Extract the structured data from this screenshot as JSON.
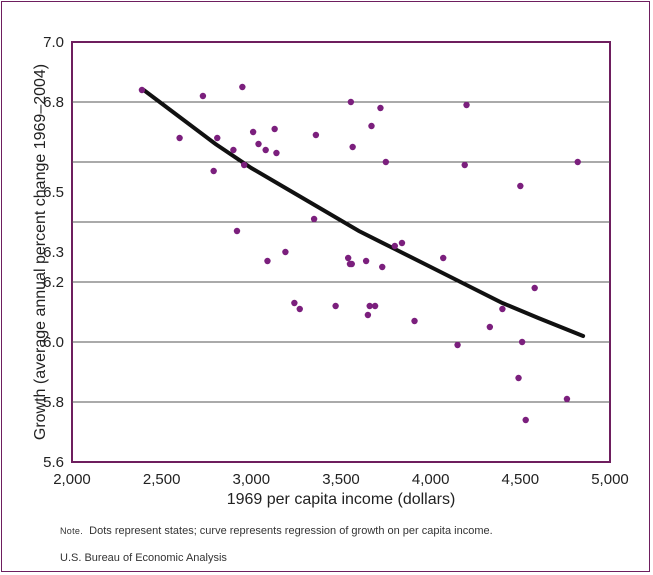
{
  "chart_data": {
    "type": "scatter",
    "xlabel": "1969 per capita income (dollars)",
    "ylabel": "Growth (average annual percent change 1969–2004)",
    "xlim": [
      2000,
      5000
    ],
    "ylim": [
      5.6,
      7.0
    ],
    "x_ticks": [
      2000,
      2500,
      3000,
      3500,
      4000,
      4500,
      5000
    ],
    "x_tick_labels": [
      "2,000",
      "2,500",
      "3,000",
      "3,500",
      "4,000",
      "4,500",
      "5,000"
    ],
    "y_ticks": [
      5.6,
      5.8,
      6.0,
      6.2,
      6.3,
      6.5,
      6.8,
      7.0
    ],
    "y_tick_labels": [
      "5.6",
      "5.8",
      "6.0",
      "6.2",
      "6.3",
      "6.5",
      "6.8",
      "7.0"
    ],
    "gridlines_at": [
      5.8,
      6.0,
      6.2,
      6.4,
      6.6,
      6.8
    ],
    "legend": "none",
    "points": [
      [
        2390,
        6.84
      ],
      [
        2600,
        6.68
      ],
      [
        2730,
        6.82
      ],
      [
        2790,
        6.57
      ],
      [
        2810,
        6.68
      ],
      [
        2900,
        6.64
      ],
      [
        2920,
        6.37
      ],
      [
        2950,
        6.85
      ],
      [
        2960,
        6.59
      ],
      [
        3010,
        6.7
      ],
      [
        3040,
        6.66
      ],
      [
        3080,
        6.64
      ],
      [
        3090,
        6.27
      ],
      [
        3130,
        6.71
      ],
      [
        3140,
        6.63
      ],
      [
        3190,
        6.3
      ],
      [
        3240,
        6.13
      ],
      [
        3270,
        6.11
      ],
      [
        3350,
        6.41
      ],
      [
        3360,
        6.69
      ],
      [
        3470,
        6.12
      ],
      [
        3540,
        6.28
      ],
      [
        3550,
        6.26
      ],
      [
        3555,
        6.8
      ],
      [
        3560,
        6.26
      ],
      [
        3565,
        6.65
      ],
      [
        3640,
        6.27
      ],
      [
        3650,
        6.09
      ],
      [
        3660,
        6.12
      ],
      [
        3670,
        6.72
      ],
      [
        3690,
        6.12
      ],
      [
        3720,
        6.78
      ],
      [
        3730,
        6.25
      ],
      [
        3750,
        6.6
      ],
      [
        3800,
        6.32
      ],
      [
        3840,
        6.33
      ],
      [
        3910,
        6.07
      ],
      [
        4070,
        6.28
      ],
      [
        4150,
        5.99
      ],
      [
        4190,
        6.59
      ],
      [
        4200,
        6.79
      ],
      [
        4330,
        6.05
      ],
      [
        4400,
        6.11
      ],
      [
        4490,
        5.88
      ],
      [
        4500,
        6.52
      ],
      [
        4510,
        6.0
      ],
      [
        4530,
        5.74
      ],
      [
        4580,
        6.18
      ],
      [
        4760,
        5.81
      ],
      [
        4820,
        6.6
      ]
    ],
    "regression_curve": [
      [
        2400,
        6.84
      ],
      [
        2600,
        6.75
      ],
      [
        2800,
        6.66
      ],
      [
        3000,
        6.58
      ],
      [
        3200,
        6.51
      ],
      [
        3400,
        6.44
      ],
      [
        3600,
        6.37
      ],
      [
        3800,
        6.31
      ],
      [
        4000,
        6.25
      ],
      [
        4200,
        6.19
      ],
      [
        4400,
        6.13
      ],
      [
        4600,
        6.08
      ],
      [
        4850,
        6.02
      ]
    ]
  },
  "colors": {
    "frame": "#6e1e5e",
    "dot": "#7b1f7d",
    "curve": "#111111",
    "grid": "#555555"
  },
  "note": {
    "prefix": "Note.",
    "text": "Dots represent states; curve represents regression of growth on per capita income."
  },
  "source": "U.S. Bureau of Economic Analysis"
}
